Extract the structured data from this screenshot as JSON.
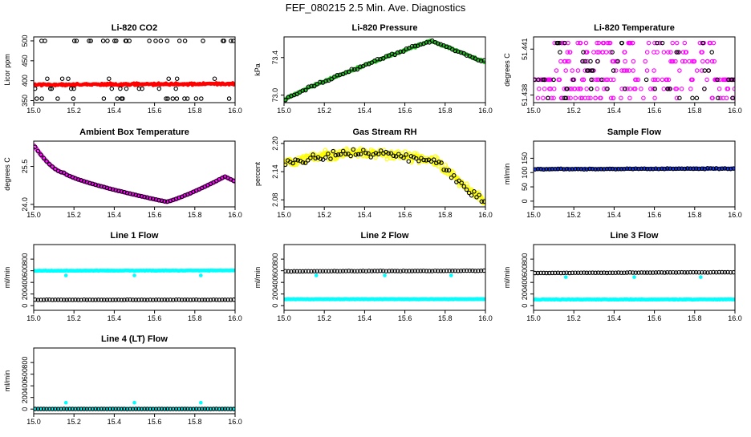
{
  "title": "FEF_080215  2.5 Min. Ave. Diagnostics",
  "colors": {
    "black": "#000000",
    "red": "#ff0000",
    "green": "#22c022",
    "magenta": "#ff00ff",
    "yellow": "#ffff00",
    "blue": "#1a3cff",
    "cyan": "#00ffff",
    "axis": "#000000"
  },
  "chart_data": [
    {
      "id": "li820-co2",
      "type": "scatter",
      "title": "Li-820 CO2",
      "ylabel": "Licor ppm",
      "xlim": [
        15.0,
        16.0
      ],
      "xticks": [
        "15.0",
        "15.2",
        "15.4",
        "15.6",
        "15.8",
        "16.0"
      ],
      "ylim": [
        345,
        510
      ],
      "yticks": [
        350,
        400,
        450,
        500
      ],
      "series": [
        {
          "name": "dense",
          "color": "red",
          "marker": "dot",
          "shape": "flat",
          "y0": 390,
          "y1": 392,
          "noise": 4,
          "n": 220
        },
        {
          "name": "avg",
          "color": "black",
          "marker": "ring",
          "shape": "co2outliers",
          "n": 60
        }
      ]
    },
    {
      "id": "li820-pressure",
      "type": "scatter",
      "title": "Li-820 Pressure",
      "ylabel": "kPa",
      "xlim": [
        15.0,
        16.0
      ],
      "xticks": [
        "15.0",
        "15.2",
        "15.4",
        "15.6",
        "15.8",
        "16.0"
      ],
      "ylim": [
        72.92,
        73.62
      ],
      "yticks": [
        73.0,
        73.4
      ],
      "series": [
        {
          "name": "dense",
          "color": "green",
          "marker": "dot",
          "shape": "pressure",
          "noise": 0.015,
          "n": 240
        },
        {
          "name": "avg",
          "color": "black",
          "marker": "ring",
          "shape": "pressure",
          "noise": 0.02,
          "n": 70
        }
      ]
    },
    {
      "id": "li820-temperature",
      "type": "scatter",
      "title": "Li-820 Temperature",
      "ylabel": "degrees C",
      "xlim": [
        15.0,
        16.0
      ],
      "xticks": [
        "15.0",
        "15.2",
        "15.4",
        "15.6",
        "15.8",
        "16.0"
      ],
      "ylim": [
        51.4375,
        51.4418
      ],
      "yticks": [
        51.438,
        51.441
      ],
      "series": [
        {
          "name": "dense",
          "color": "magenta",
          "marker": "ring",
          "shape": "quantized",
          "n": 260
        },
        {
          "name": "avg",
          "color": "black",
          "marker": "ring",
          "shape": "quantized",
          "n": 60
        }
      ]
    },
    {
      "id": "ambient-box-temperature",
      "type": "scatter",
      "title": "Ambient Box Temperature",
      "ylabel": "degrees C",
      "xlim": [
        15.0,
        16.0
      ],
      "xticks": [
        "15.0",
        "15.2",
        "15.4",
        "15.6",
        "15.8",
        "16.0"
      ],
      "ylim": [
        23.9,
        26.5
      ],
      "yticks": [
        24.0,
        25.5
      ],
      "series": [
        {
          "name": "dense",
          "color": "magenta",
          "marker": "ring",
          "shape": "ambient",
          "noise": 0.01,
          "n": 220
        },
        {
          "name": "avg",
          "color": "black",
          "marker": "ring",
          "shape": "ambient",
          "noise": 0.01,
          "n": 70
        }
      ]
    },
    {
      "id": "gas-stream-rh",
      "type": "scatter",
      "title": "Gas Stream RH",
      "ylabel": "percent",
      "xlim": [
        15.0,
        16.0
      ],
      "xticks": [
        "15.0",
        "15.2",
        "15.4",
        "15.6",
        "15.8",
        "16.0"
      ],
      "ylim": [
        2.065,
        2.205
      ],
      "yticks": [
        2.08,
        2.14,
        2.2
      ],
      "series": [
        {
          "name": "dense",
          "color": "yellow",
          "marker": "ring",
          "shape": "rh",
          "noise": 0.014,
          "n": 320
        },
        {
          "name": "avg",
          "color": "black",
          "marker": "ring",
          "shape": "rh",
          "noise": 0.013,
          "n": 80
        }
      ]
    },
    {
      "id": "sample-flow",
      "type": "scatter",
      "title": "Sample Flow",
      "ylabel": "ml/min",
      "xlim": [
        15.0,
        16.0
      ],
      "xticks": [
        "15.0",
        "15.2",
        "15.4",
        "15.6",
        "15.8",
        "16.0"
      ],
      "ylim": [
        -20,
        210
      ],
      "yticks": [
        0,
        50,
        100,
        150
      ],
      "series": [
        {
          "name": "dense",
          "color": "blue",
          "marker": "dot",
          "shape": "flat",
          "y0": 112,
          "y1": 114,
          "noise": 2,
          "n": 260
        },
        {
          "name": "avg",
          "color": "black",
          "marker": "ring",
          "shape": "flat",
          "y0": 112,
          "y1": 114,
          "noise": 2,
          "n": 70
        }
      ]
    },
    {
      "id": "line-1-flow",
      "type": "scatter",
      "title": "Line 1 Flow",
      "ylabel": "ml/min",
      "xlim": [
        15.0,
        16.0
      ],
      "xticks": [
        "15.0",
        "15.2",
        "15.4",
        "15.6",
        "15.8",
        "16.0"
      ],
      "ylim": [
        -80,
        1050
      ],
      "yticks": [
        0,
        200,
        400,
        600,
        800
      ],
      "series": [
        {
          "name": "cyan",
          "color": "cyan",
          "marker": "dot",
          "shape": "flat",
          "y0": 600,
          "y1": 605,
          "noise": 6,
          "n": 260,
          "dips": [
            15.16,
            15.5,
            15.83
          ],
          "dipval": 520
        },
        {
          "name": "avg",
          "color": "black",
          "marker": "ring",
          "shape": "flat",
          "y0": 100,
          "y1": 100,
          "noise": 3,
          "n": 70
        }
      ]
    },
    {
      "id": "line-2-flow",
      "type": "scatter",
      "title": "Line 2 Flow",
      "ylabel": "ml/min",
      "xlim": [
        15.0,
        16.0
      ],
      "xticks": [
        "15.0",
        "15.2",
        "15.4",
        "15.6",
        "15.8",
        "16.0"
      ],
      "ylim": [
        -80,
        1050
      ],
      "yticks": [
        0,
        200,
        400,
        600,
        800
      ],
      "series": [
        {
          "name": "cyan",
          "color": "cyan",
          "marker": "dot",
          "shape": "flat",
          "y0": 110,
          "y1": 112,
          "noise": 6,
          "n": 260,
          "dips": [
            15.16,
            15.5,
            15.83
          ],
          "dipval": 520
        },
        {
          "name": "avg",
          "color": "black",
          "marker": "ring",
          "shape": "flat",
          "y0": 590,
          "y1": 600,
          "noise": 4,
          "n": 70
        }
      ]
    },
    {
      "id": "line-3-flow",
      "type": "scatter",
      "title": "Line 3 Flow",
      "ylabel": "ml/min",
      "xlim": [
        15.0,
        16.0
      ],
      "xticks": [
        "15.0",
        "15.2",
        "15.4",
        "15.6",
        "15.8",
        "16.0"
      ],
      "ylim": [
        -80,
        1050
      ],
      "yticks": [
        0,
        200,
        400,
        600,
        800
      ],
      "series": [
        {
          "name": "cyan",
          "color": "cyan",
          "marker": "dot",
          "shape": "flat",
          "y0": 105,
          "y1": 107,
          "noise": 6,
          "n": 260,
          "dips": [
            15.16,
            15.5,
            15.83
          ],
          "dipval": 490
        },
        {
          "name": "avg",
          "color": "black",
          "marker": "ring",
          "shape": "flat",
          "y0": 560,
          "y1": 575,
          "noise": 4,
          "n": 70
        }
      ]
    },
    {
      "id": "line-4-flow",
      "type": "scatter",
      "title": "Line 4 (LT) Flow",
      "ylabel": "ml/min",
      "xlim": [
        15.0,
        16.0
      ],
      "xticks": [
        "15.0",
        "15.2",
        "15.4",
        "15.6",
        "15.8",
        "16.0"
      ],
      "ylim": [
        -80,
        1050
      ],
      "yticks": [
        0,
        200,
        400,
        600,
        800
      ],
      "series": [
        {
          "name": "cyan",
          "color": "cyan",
          "marker": "dot",
          "shape": "flat",
          "y0": 5,
          "y1": 5,
          "noise": 3,
          "n": 260,
          "spikes": [
            15.16,
            15.5,
            15.83
          ],
          "spikeval": 110
        },
        {
          "name": "avg",
          "color": "black",
          "marker": "ring",
          "shape": "flat",
          "y0": 2,
          "y1": 2,
          "noise": 2,
          "n": 70
        }
      ]
    }
  ]
}
